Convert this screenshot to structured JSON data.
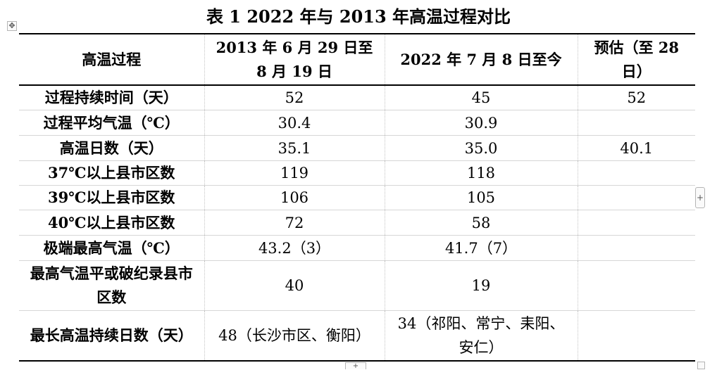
{
  "title": "表 1  2022 年与 2013 年高温过程对比",
  "icons": {
    "move": "move-icon",
    "add_row": "plus-icon",
    "add_col": "plus-icon",
    "resize": "resize-icon"
  },
  "table": {
    "headers": [
      "高温过程",
      "2013 年 6 月 29 日至 8 月 19 日",
      "2022 年 7 月 8 日至今",
      "预估（至 28 日）"
    ],
    "rows": [
      [
        "过程持续时间（天）",
        "52",
        "45",
        "52"
      ],
      [
        "过程平均气温（℃）",
        "30.4",
        "30.9",
        ""
      ],
      [
        "高温日数（天）",
        "35.1",
        "35.0",
        "40.1"
      ],
      [
        "37℃以上县市区数",
        "119",
        "118",
        ""
      ],
      [
        "39℃以上县市区数",
        "106",
        "105",
        ""
      ],
      [
        "40℃以上县市区数",
        "72",
        "58",
        ""
      ],
      [
        "极端最高气温（℃）",
        "43.2（3）",
        "41.7（7）",
        ""
      ],
      [
        "最高气温平或破纪录县市区数",
        "40",
        "19",
        ""
      ],
      [
        "最长高温持续日数（天）",
        "48（长沙市区、衡阳）",
        "34（祁阳、常宁、耒阳、安仁）",
        ""
      ]
    ]
  }
}
